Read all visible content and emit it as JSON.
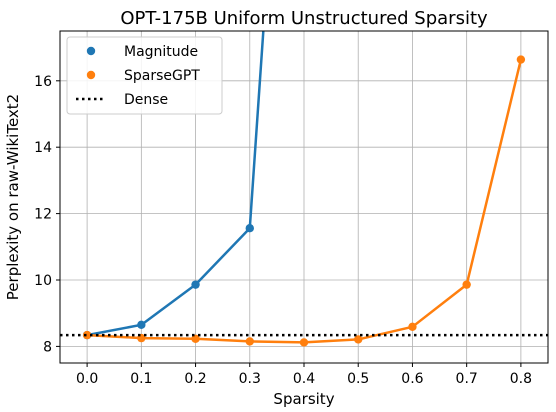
{
  "chart_data": {
    "type": "line",
    "title": "OPT-175B Uniform Unstructured Sparsity",
    "xlabel": "Sparsity",
    "ylabel": "Perplexity on raw-WikiText2",
    "xlim": [
      -0.05,
      0.85
    ],
    "ylim": [
      7.5,
      17.5
    ],
    "xticks": [
      0.0,
      0.1,
      0.2,
      0.3,
      0.4,
      0.5,
      0.6,
      0.7,
      0.8
    ],
    "xtick_labels": [
      "0.0",
      "0.1",
      "0.2",
      "0.3",
      "0.4",
      "0.5",
      "0.6",
      "0.7",
      "0.8"
    ],
    "yticks": [
      8,
      10,
      12,
      14,
      16
    ],
    "ytick_labels": [
      "8",
      "10",
      "12",
      "14",
      "16"
    ],
    "grid": true,
    "legend_position": "top-left",
    "series": [
      {
        "name": "Magnitude",
        "color": "#1f77b4",
        "markers": true,
        "x": [
          0.0,
          0.1,
          0.2,
          0.3
        ],
        "y": [
          8.34,
          8.65,
          9.86,
          11.56
        ],
        "continues_offscale": {
          "x": 0.325,
          "y": 17.5
        }
      },
      {
        "name": "SparseGPT",
        "color": "#ff7f0e",
        "markers": true,
        "x": [
          0.0,
          0.1,
          0.2,
          0.3,
          0.4,
          0.5,
          0.6,
          0.7,
          0.8
        ],
        "y": [
          8.34,
          8.25,
          8.23,
          8.15,
          8.12,
          8.21,
          8.59,
          9.86,
          16.64
        ]
      }
    ],
    "reference_lines": [
      {
        "name": "Dense",
        "y": 8.34,
        "style": "dotted",
        "color": "#000000"
      }
    ]
  }
}
